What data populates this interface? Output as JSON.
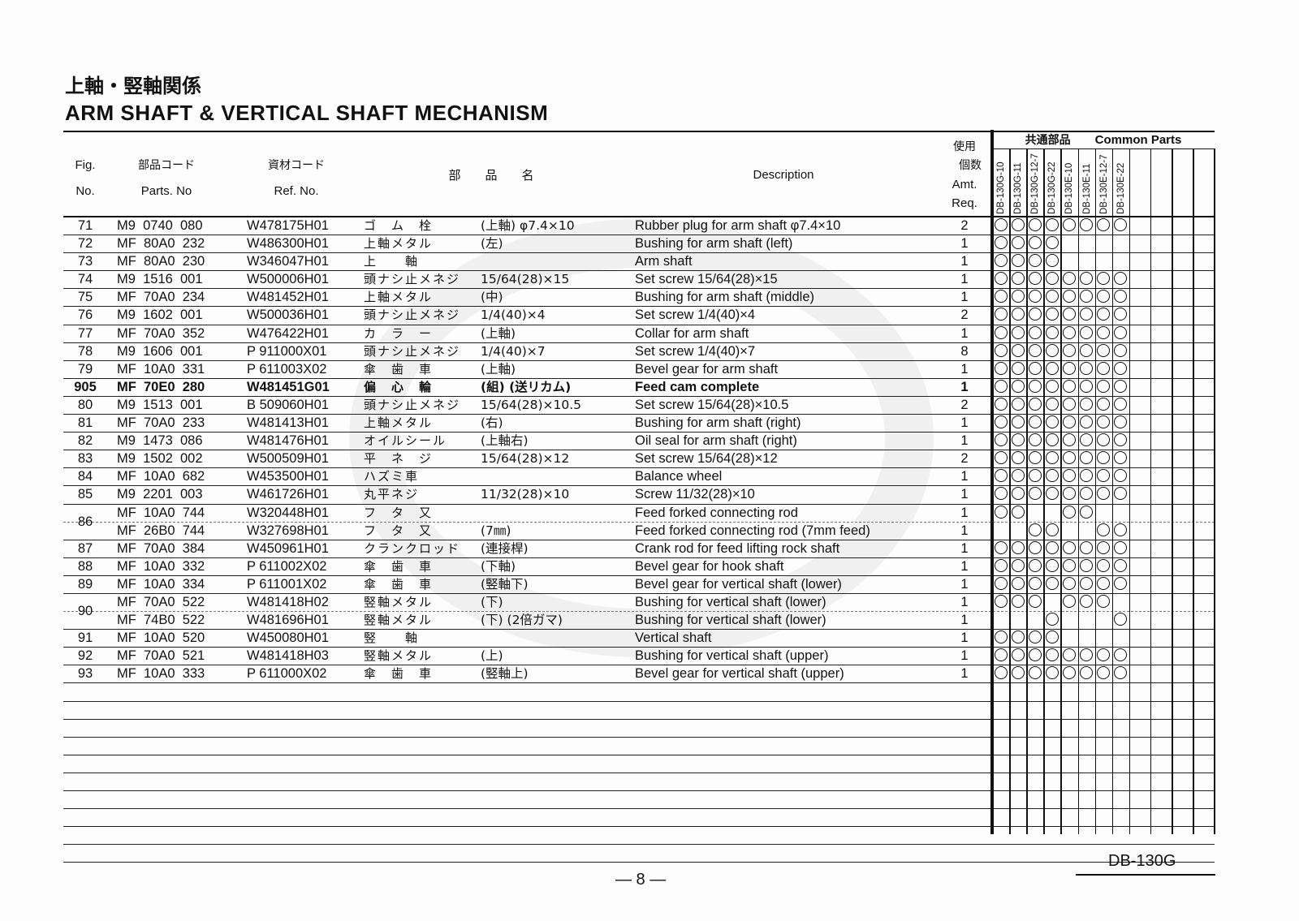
{
  "title_jp": "上軸・竪軸関係",
  "title_en": "ARM SHAFT & VERTICAL SHAFT MECHANISM",
  "headers": {
    "fig": "Fig.",
    "fig2": "No.",
    "parts_jp": "部品コード",
    "parts_en": "Parts. No",
    "ref_jp": "資材コード",
    "ref_en": "Ref. No.",
    "name_jp": "部　　品　　名",
    "desc": "Description",
    "amt_jp1": "使用",
    "amt_jp2": "個数",
    "amt_en1": "Amt.",
    "amt_en2": "Req.",
    "common_jp": "共通部品",
    "common_en": "Common Parts"
  },
  "models": [
    "DB-130G-10",
    "DB-130G-11",
    "DB-130G-12-7",
    "DB-130G-22",
    "DB-130E-10",
    "DB-130E-11",
    "DB-130E-12-7",
    "DB-130E-22"
  ],
  "rows": [
    {
      "fig": "71",
      "pn": "M9  0740  080",
      "ref": "W478175H01",
      "jp": "ゴ　ム　栓",
      "spec": "(上軸) φ7.4×10",
      "desc": "Rubber plug for arm shaft φ7.4×10",
      "amt": "2",
      "c": [
        1,
        1,
        1,
        1,
        1,
        1,
        1,
        1
      ]
    },
    {
      "fig": "72",
      "pn": "MF  80A0  232",
      "ref": "W486300H01",
      "jp": "上軸メタル",
      "spec": "(左)",
      "desc": "Bushing for arm shaft (left)",
      "amt": "1",
      "c": [
        1,
        1,
        1,
        1,
        0,
        0,
        0,
        0
      ]
    },
    {
      "fig": "73",
      "pn": "MF  80A0  230",
      "ref": "W346047H01",
      "jp": "上　　軸",
      "spec": "",
      "desc": "Arm shaft",
      "amt": "1",
      "c": [
        1,
        1,
        1,
        1,
        0,
        0,
        0,
        0
      ]
    },
    {
      "fig": "74",
      "pn": "M9  1516  001",
      "ref": "W500006H01",
      "jp": "頭ナシ止メネジ",
      "spec": "15/64(28)×15",
      "desc": "Set screw 15/64(28)×15",
      "amt": "1",
      "c": [
        1,
        1,
        1,
        1,
        1,
        1,
        1,
        1
      ]
    },
    {
      "fig": "75",
      "pn": "MF  70A0  234",
      "ref": "W481452H01",
      "jp": "上軸メタル",
      "spec": "(中)",
      "desc": "Bushing for arm shaft (middle)",
      "amt": "1",
      "c": [
        1,
        1,
        1,
        1,
        1,
        1,
        1,
        1
      ]
    },
    {
      "fig": "76",
      "pn": "M9  1602  001",
      "ref": "W500036H01",
      "jp": "頭ナシ止メネジ",
      "spec": "1/4(40)×4",
      "desc": "Set screw 1/4(40)×4",
      "amt": "2",
      "c": [
        1,
        1,
        1,
        1,
        1,
        1,
        1,
        1
      ]
    },
    {
      "fig": "77",
      "pn": "MF  70A0  352",
      "ref": "W476422H01",
      "jp": "カ　ラ　ー",
      "spec": "(上軸)",
      "desc": "Collar for arm shaft",
      "amt": "1",
      "c": [
        1,
        1,
        1,
        1,
        1,
        1,
        1,
        1
      ]
    },
    {
      "fig": "78",
      "pn": "M9  1606  001",
      "ref": "P 911000X01",
      "jp": "頭ナシ止メネジ",
      "spec": "1/4(40)×7",
      "desc": "Set screw 1/4(40)×7",
      "amt": "8",
      "c": [
        1,
        1,
        1,
        1,
        1,
        1,
        1,
        1
      ]
    },
    {
      "fig": "79",
      "pn": "MF  10A0  331",
      "ref": "P 611003X02",
      "jp": "傘　歯　車",
      "spec": "(上軸)",
      "desc": "Bevel gear for arm shaft",
      "amt": "1",
      "c": [
        1,
        1,
        1,
        1,
        1,
        1,
        1,
        1
      ]
    },
    {
      "fig": "905",
      "pn": "MF  70E0  280",
      "ref": "W481451G01",
      "jp": "偏　心　輪",
      "spec": "(組) (送リカム)",
      "desc": "Feed cam complete",
      "amt": "1",
      "c": [
        1,
        1,
        1,
        1,
        1,
        1,
        1,
        1
      ],
      "bold": true
    },
    {
      "fig": "80",
      "pn": "M9  1513  001",
      "ref": "B 509060H01",
      "jp": "頭ナシ止メネジ",
      "spec": "15/64(28)×10.5",
      "desc": "Set screw 15/64(28)×10.5",
      "amt": "2",
      "c": [
        1,
        1,
        1,
        1,
        1,
        1,
        1,
        1
      ]
    },
    {
      "fig": "81",
      "pn": "MF  70A0  233",
      "ref": "W481413H01",
      "jp": "上軸メタル",
      "spec": "(右)",
      "desc": "Bushing for arm shaft (right)",
      "amt": "1",
      "c": [
        1,
        1,
        1,
        1,
        1,
        1,
        1,
        1
      ]
    },
    {
      "fig": "82",
      "pn": "M9  1473  086",
      "ref": "W481476H01",
      "jp": "オイルシール",
      "spec": "(上軸右)",
      "desc": "Oil seal for arm shaft (right)",
      "amt": "1",
      "c": [
        1,
        1,
        1,
        1,
        1,
        1,
        1,
        1
      ]
    },
    {
      "fig": "83",
      "pn": "M9  1502  002",
      "ref": "W500509H01",
      "jp": "平　ネ　ジ",
      "spec": "15/64(28)×12",
      "desc": "Set screw 15/64(28)×12",
      "amt": "2",
      "c": [
        1,
        1,
        1,
        1,
        1,
        1,
        1,
        1
      ]
    },
    {
      "fig": "84",
      "pn": "MF  10A0  682",
      "ref": "W453500H01",
      "jp": "ハズミ車",
      "spec": "",
      "desc": "Balance wheel",
      "amt": "1",
      "c": [
        1,
        1,
        1,
        1,
        1,
        1,
        1,
        1
      ]
    },
    {
      "fig": "85",
      "pn": "M9  2201  003",
      "ref": "W461726H01",
      "jp": "丸平ネジ",
      "spec": "11/32(28)×10",
      "desc": "Screw 11/32(28)×10",
      "amt": "1",
      "c": [
        1,
        1,
        1,
        1,
        1,
        1,
        1,
        1
      ]
    },
    {
      "fig": "86",
      "pn": "MF  10A0  744",
      "ref": "W320448H01",
      "jp": "フ　タ　又",
      "spec": "",
      "desc": "Feed forked connecting rod",
      "amt": "1",
      "c": [
        1,
        1,
        0,
        0,
        1,
        1,
        0,
        0
      ],
      "sub": true
    },
    {
      "fig": "",
      "pn": "MF  26B0  744",
      "ref": "W327698H01",
      "jp": "フ　タ　又",
      "spec": "(7㎜)",
      "desc": "Feed forked connecting rod (7mm feed)",
      "amt": "1",
      "c": [
        0,
        0,
        1,
        1,
        0,
        0,
        1,
        1
      ]
    },
    {
      "fig": "87",
      "pn": "MF  70A0  384",
      "ref": "W450961H01",
      "jp": "クランクロッド",
      "spec": "(連接桿)",
      "desc": "Crank rod for feed lifting rock shaft",
      "amt": "1",
      "c": [
        1,
        1,
        1,
        1,
        1,
        1,
        1,
        1
      ]
    },
    {
      "fig": "88",
      "pn": "MF  10A0  332",
      "ref": "P 611002X02",
      "jp": "傘　歯　車",
      "spec": "(下軸)",
      "desc": "Bevel gear for hook shaft",
      "amt": "1",
      "c": [
        1,
        1,
        1,
        1,
        1,
        1,
        1,
        1
      ]
    },
    {
      "fig": "89",
      "pn": "MF  10A0  334",
      "ref": "P 611001X02",
      "jp": "傘　歯　車",
      "spec": "(竪軸下)",
      "desc": "Bevel gear for vertical shaft (lower)",
      "amt": "1",
      "c": [
        1,
        1,
        1,
        1,
        1,
        1,
        1,
        1
      ]
    },
    {
      "fig": "90",
      "pn": "MF  70A0  522",
      "ref": "W481418H02",
      "jp": "竪軸メタル",
      "spec": "(下)",
      "desc": "Bushing for vertical shaft (lower)",
      "amt": "1",
      "c": [
        1,
        1,
        1,
        0,
        1,
        1,
        1,
        0
      ],
      "sub": true
    },
    {
      "fig": "",
      "pn": "MF  74B0  522",
      "ref": "W481696H01",
      "jp": "竪軸メタル",
      "spec": "(下) (2倍ガマ)",
      "desc": "Bushing for vertical shaft (lower)",
      "amt": "1",
      "c": [
        0,
        0,
        0,
        1,
        0,
        0,
        0,
        1
      ]
    },
    {
      "fig": "91",
      "pn": "MF  10A0  520",
      "ref": "W450080H01",
      "jp": "竪　　軸",
      "spec": "",
      "desc": "Vertical shaft",
      "amt": "1",
      "c": [
        1,
        1,
        1,
        1,
        0,
        0,
        0,
        0
      ]
    },
    {
      "fig": "92",
      "pn": "MF  70A0  521",
      "ref": "W481418H03",
      "jp": "竪軸メタル",
      "spec": "(上)",
      "desc": "Bushing for vertical shaft (upper)",
      "amt": "1",
      "c": [
        1,
        1,
        1,
        1,
        1,
        1,
        1,
        1
      ]
    },
    {
      "fig": "93",
      "pn": "MF  10A0  333",
      "ref": "P 611000X02",
      "jp": "傘　歯　車",
      "spec": "(竪軸上)",
      "desc": "Bevel gear for vertical shaft (upper)",
      "amt": "1",
      "c": [
        1,
        1,
        1,
        1,
        1,
        1,
        1,
        1
      ]
    }
  ],
  "footer": {
    "model": "DB-130G",
    "page": "— 8 —"
  }
}
